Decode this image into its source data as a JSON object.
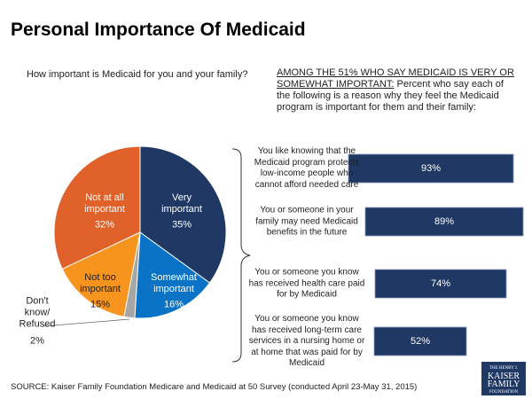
{
  "title": "Personal Importance Of Medicaid",
  "source": "SOURCE: Kaiser Family Foundation Medicare and Medicaid at 50 Survey (conducted April 23-May 31, 2015)",
  "logo": [
    "THE HENRY J.",
    "KAISER",
    "FAMILY",
    "FOUNDATION"
  ],
  "chart_data": [
    {
      "type": "pie",
      "title": "How important is Medicaid for you and your family?",
      "categories": [
        "Very important",
        "Somewhat important",
        "Don't know/ Refused",
        "Not too important",
        "Not at all important"
      ],
      "values": [
        35,
        16,
        2,
        15,
        32
      ],
      "value_labels": [
        "35%",
        "16%",
        "2%",
        "15%",
        "32%"
      ],
      "colors": [
        "#1f3864",
        "#0b73c5",
        "#a6a6a6",
        "#f7941e",
        "#e0612a"
      ]
    },
    {
      "type": "bar",
      "orientation": "horizontal",
      "title_underlined": "AMONG THE 51% WHO SAY MEDICAID IS VERY OR SOMEWHAT IMPORTANT:",
      "title": "Percent who say each of the following is a reason why they feel the Medicaid program is important for them and their family:",
      "categories": [
        "You like knowing that the Medicaid program protects low-income people who cannot afford needed care",
        "You or someone in your family may need Medicaid benefits in the future",
        "You or someone you know has received health care paid for by Medicaid",
        "You or someone you know has received long-term care services in a nursing home or at home that was paid for by Medicaid"
      ],
      "values": [
        93,
        89,
        74,
        52
      ],
      "value_labels": [
        "93%",
        "89%",
        "74%",
        "52%"
      ],
      "color": "#1f3864"
    }
  ]
}
